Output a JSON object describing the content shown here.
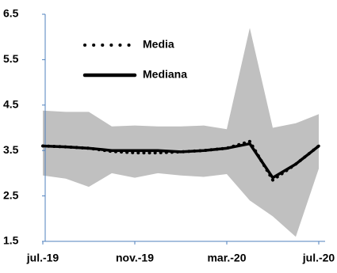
{
  "chart_data": {
    "type": "line",
    "categories": [
      "jul.-19",
      null,
      null,
      null,
      "nov.-19",
      null,
      null,
      null,
      "mar.-20",
      null,
      null,
      null,
      "jul.-20"
    ],
    "band": {
      "color": "#c0c0c0",
      "upper": [
        4.38,
        4.35,
        4.35,
        4.03,
        4.05,
        4.03,
        4.03,
        4.05,
        3.97,
        6.2,
        4.0,
        4.1,
        4.3
      ],
      "lower": [
        2.95,
        2.88,
        2.7,
        3.0,
        2.9,
        3.0,
        2.95,
        2.92,
        2.98,
        2.4,
        2.05,
        1.6,
        3.1
      ]
    },
    "series": [
      {
        "name": "Media",
        "color": "#000000",
        "style": "dotted",
        "values": [
          3.6,
          3.58,
          3.55,
          3.48,
          3.45,
          3.45,
          3.47,
          3.5,
          3.55,
          3.7,
          2.85,
          3.2,
          3.6
        ]
      },
      {
        "name": "Mediana",
        "color": "#000000",
        "style": "solid",
        "values": [
          3.6,
          3.58,
          3.55,
          3.5,
          3.5,
          3.5,
          3.47,
          3.5,
          3.55,
          3.65,
          2.9,
          3.2,
          3.6
        ]
      }
    ],
    "ylim": [
      1.5,
      6.5
    ],
    "yticks": [
      1.5,
      2.5,
      3.5,
      4.5,
      5.5,
      6.5
    ],
    "grid": false,
    "legend": "top-left"
  }
}
